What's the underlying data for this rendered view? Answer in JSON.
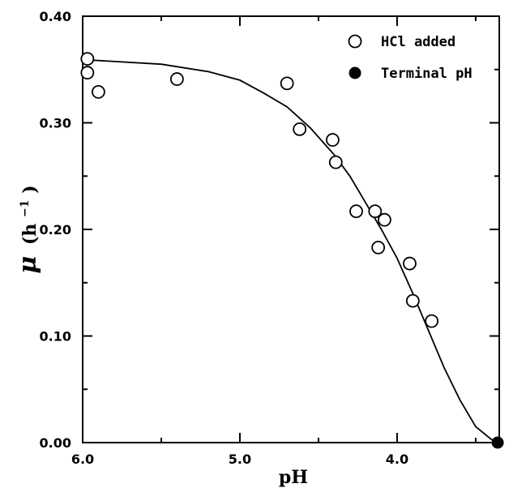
{
  "chart_data": {
    "type": "scatter",
    "xlabel": "pH",
    "ylabel_symbol": "μ",
    "ylabel_unit": "(h",
    "ylabel_sup": "−1",
    "ylabel_close": ")",
    "xlim": [
      6.0,
      3.35
    ],
    "ylim": [
      0.0,
      0.4
    ],
    "x_ticks": [
      {
        "value": 6.0,
        "label": "6.0"
      },
      {
        "value": 5.0,
        "label": "5.0"
      },
      {
        "value": 4.0,
        "label": "4.0"
      }
    ],
    "y_ticks": [
      {
        "value": 0.0,
        "label": "0.00"
      },
      {
        "value": 0.1,
        "label": "0.10"
      },
      {
        "value": 0.2,
        "label": "0.20"
      },
      {
        "value": 0.3,
        "label": "0.30"
      },
      {
        "value": 0.4,
        "label": "0.40"
      }
    ],
    "grid": false,
    "legend_position": "top-right",
    "series": [
      {
        "name": "HCl added",
        "marker": "open-circle",
        "points": [
          {
            "x": 5.97,
            "y": 0.36
          },
          {
            "x": 5.97,
            "y": 0.347
          },
          {
            "x": 5.9,
            "y": 0.329
          },
          {
            "x": 5.4,
            "y": 0.341
          },
          {
            "x": 4.7,
            "y": 0.337
          },
          {
            "x": 4.62,
            "y": 0.294
          },
          {
            "x": 4.41,
            "y": 0.284
          },
          {
            "x": 4.39,
            "y": 0.263
          },
          {
            "x": 4.26,
            "y": 0.217
          },
          {
            "x": 4.14,
            "y": 0.217
          },
          {
            "x": 4.12,
            "y": 0.183
          },
          {
            "x": 4.08,
            "y": 0.209
          },
          {
            "x": 3.92,
            "y": 0.168
          },
          {
            "x": 3.9,
            "y": 0.133
          },
          {
            "x": 3.78,
            "y": 0.114
          }
        ]
      },
      {
        "name": "Terminal pH",
        "marker": "filled-circle",
        "points": [
          {
            "x": 3.36,
            "y": 0.0
          }
        ]
      },
      {
        "name": "",
        "style": "line",
        "points": [
          {
            "x": 5.97,
            "y": 0.359
          },
          {
            "x": 5.5,
            "y": 0.355
          },
          {
            "x": 5.2,
            "y": 0.348
          },
          {
            "x": 5.0,
            "y": 0.34
          },
          {
            "x": 4.85,
            "y": 0.328
          },
          {
            "x": 4.7,
            "y": 0.315
          },
          {
            "x": 4.55,
            "y": 0.295
          },
          {
            "x": 4.4,
            "y": 0.27
          },
          {
            "x": 4.3,
            "y": 0.25
          },
          {
            "x": 4.2,
            "y": 0.225
          },
          {
            "x": 4.1,
            "y": 0.2
          },
          {
            "x": 4.0,
            "y": 0.173
          },
          {
            "x": 3.9,
            "y": 0.14
          },
          {
            "x": 3.8,
            "y": 0.105
          },
          {
            "x": 3.7,
            "y": 0.07
          },
          {
            "x": 3.6,
            "y": 0.04
          },
          {
            "x": 3.5,
            "y": 0.015
          },
          {
            "x": 3.4,
            "y": 0.003
          },
          {
            "x": 3.36,
            "y": 0.0
          }
        ]
      }
    ]
  }
}
